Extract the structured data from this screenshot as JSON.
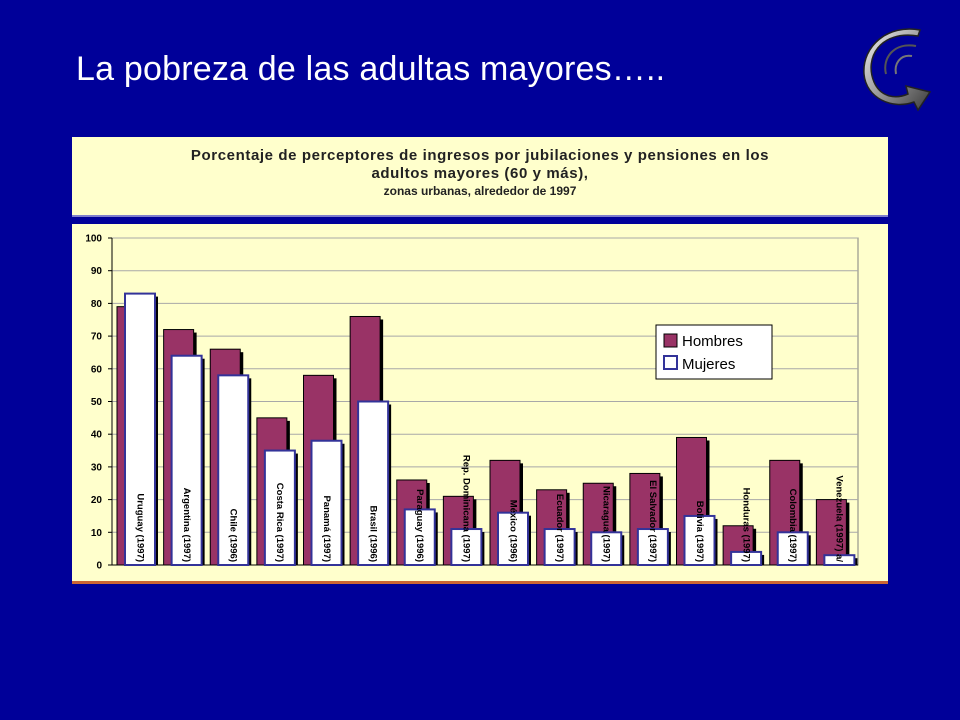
{
  "slide": {
    "title": "La pobreza de las adultas mayores….."
  },
  "chart_data": {
    "type": "bar",
    "title_line1": "Porcentaje de perceptores de ingresos por  jubilaciones y pensiones en los",
    "title_line2": "adultos mayores (60 y más),",
    "subtitle": "zonas urbanas, alrededor de 1997",
    "categories": [
      "Uruguay (1997)",
      "Argentina (1997)",
      "Chile (1996)",
      "Costa Rica (1997)",
      "Panamá (1997)",
      "Brasil (1996)",
      "Paraguay (1996)",
      "Rep. Dominicana (1997)",
      "México (1996)",
      "Ecuador (1997)",
      "Nicaragua (1997)",
      "El Salvador (1997)",
      "Bolivia (1997)",
      "Honduras (1997)",
      "Colombia (1997)",
      "Venezuela (1997) a/"
    ],
    "series": [
      {
        "name": "Hombres",
        "color": "#993366",
        "values": [
          79,
          72,
          66,
          45,
          58,
          76,
          26,
          21,
          32,
          23,
          25,
          28,
          39,
          12,
          32,
          20
        ]
      },
      {
        "name": "Mujeres",
        "color": "#ffffff",
        "values": [
          83,
          64,
          58,
          35,
          38,
          50,
          17,
          11,
          16,
          11,
          10,
          11,
          15,
          4,
          10,
          3
        ]
      }
    ],
    "ylim": [
      0,
      100
    ],
    "yticks": [
      "0",
      "10",
      "20",
      "30",
      "40",
      "50",
      "60",
      "70",
      "80",
      "90",
      "100"
    ],
    "grid": true,
    "legend_position": "right"
  },
  "colors": {
    "background": "#000099",
    "plot_background": "#ffffcc",
    "hombres": "#993366",
    "mujeres_fill": "#ffffff",
    "mujeres_border": "#333399"
  }
}
